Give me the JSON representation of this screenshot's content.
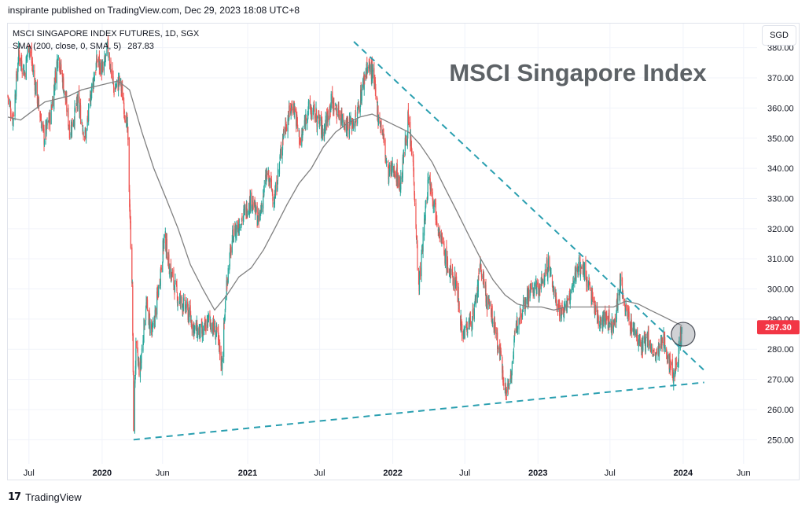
{
  "header": {
    "published_line": "inspirante published on TradingView.com, Dec 29, 2023 18:08 UTC+8"
  },
  "legend": {
    "instrument": "MSCI SINGAPORE INDEX FUTURES, 1D, SGX",
    "indicator": "SMA (200, close, 0, SMA, 5)",
    "indicator_value": "287.83"
  },
  "currency_button": "SGD",
  "footer": {
    "brand": "TradingView"
  },
  "colors": {
    "up": "#26a69a",
    "down": "#ef5350",
    "sma": "#808080",
    "trendline": "#2a9fb0",
    "price_badge": "#f23645",
    "axis_text": "#131722",
    "grid": "#f0f3fa"
  },
  "chart_data": {
    "type": "candlestick",
    "title": "MSCI Singapore Index",
    "ylim": [
      242,
      388
    ],
    "y_ticks": [
      250,
      260,
      270,
      280,
      290,
      300,
      310,
      320,
      330,
      340,
      350,
      360,
      370,
      380
    ],
    "y_tick_labels": [
      "250.00",
      "260.00",
      "270.00",
      "280.00",
      "290.00",
      "300.00",
      "310.00",
      "320.00",
      "330.00",
      "340.00",
      "350.00",
      "360.00",
      "370.00",
      "380.00"
    ],
    "x_range": [
      "2019-05-09",
      "2024-07-05"
    ],
    "x_ticks": [
      {
        "label": "Jul",
        "date": "2019-07-01"
      },
      {
        "label": "2020",
        "date": "2020-01-01"
      },
      {
        "label": "Jun",
        "date": "2020-06-01"
      },
      {
        "label": "2021",
        "date": "2021-01-01"
      },
      {
        "label": "Jul",
        "date": "2021-07-01"
      },
      {
        "label": "2022",
        "date": "2022-01-01"
      },
      {
        "label": "Jul",
        "date": "2022-07-01"
      },
      {
        "label": "2023",
        "date": "2023-01-01"
      },
      {
        "label": "Jul",
        "date": "2023-07-01"
      },
      {
        "label": "2024",
        "date": "2024-01-01"
      },
      {
        "label": "Jun",
        "date": "2024-06-01"
      }
    ],
    "last_price": 287.3,
    "last_price_label": "287.30",
    "last_date": "2023-12-29",
    "price_path": [
      [
        "2019-05-09",
        364
      ],
      [
        "2019-05-22",
        356
      ],
      [
        "2019-06-05",
        378
      ],
      [
        "2019-06-20",
        372
      ],
      [
        "2019-07-01",
        381
      ],
      [
        "2019-07-20",
        365
      ],
      [
        "2019-08-08",
        350
      ],
      [
        "2019-08-25",
        358
      ],
      [
        "2019-09-12",
        378
      ],
      [
        "2019-09-28",
        366
      ],
      [
        "2019-10-12",
        352
      ],
      [
        "2019-11-01",
        362
      ],
      [
        "2019-11-20",
        350
      ],
      [
        "2019-12-05",
        366
      ],
      [
        "2019-12-20",
        376
      ],
      [
        "2020-01-03",
        372
      ],
      [
        "2020-01-15",
        380
      ],
      [
        "2020-01-31",
        366
      ],
      [
        "2020-02-15",
        369
      ],
      [
        "2020-02-25",
        361
      ],
      [
        "2020-03-05",
        352
      ],
      [
        "2020-03-12",
        320
      ],
      [
        "2020-03-17",
        300
      ],
      [
        "2020-03-20",
        255
      ],
      [
        "2020-03-26",
        280
      ],
      [
        "2020-04-05",
        272
      ],
      [
        "2020-04-20",
        295
      ],
      [
        "2020-05-06",
        285
      ],
      [
        "2020-05-22",
        300
      ],
      [
        "2020-06-06",
        318
      ],
      [
        "2020-06-20",
        306
      ],
      [
        "2020-07-10",
        297
      ],
      [
        "2020-08-01",
        293
      ],
      [
        "2020-08-20",
        287
      ],
      [
        "2020-09-10",
        285
      ],
      [
        "2020-09-25",
        290
      ],
      [
        "2020-10-15",
        285
      ],
      [
        "2020-10-28",
        275
      ],
      [
        "2020-11-09",
        302
      ],
      [
        "2020-11-25",
        318
      ],
      [
        "2020-12-20",
        324
      ],
      [
        "2021-01-10",
        330
      ],
      [
        "2021-01-29",
        322
      ],
      [
        "2021-02-18",
        338
      ],
      [
        "2021-03-10",
        330
      ],
      [
        "2021-04-01",
        352
      ],
      [
        "2021-04-25",
        362
      ],
      [
        "2021-05-14",
        348
      ],
      [
        "2021-06-01",
        360
      ],
      [
        "2021-06-20",
        358
      ],
      [
        "2021-07-10",
        352
      ],
      [
        "2021-07-30",
        362
      ],
      [
        "2021-08-20",
        358
      ],
      [
        "2021-09-10",
        354
      ],
      [
        "2021-09-30",
        356
      ],
      [
        "2021-10-15",
        366
      ],
      [
        "2021-10-28",
        374
      ],
      [
        "2021-11-10",
        372
      ],
      [
        "2021-11-25",
        358
      ],
      [
        "2021-12-06",
        352
      ],
      [
        "2021-12-20",
        338
      ],
      [
        "2022-01-05",
        340
      ],
      [
        "2022-01-20",
        334
      ],
      [
        "2022-02-08",
        356
      ],
      [
        "2022-02-22",
        340
      ],
      [
        "2022-03-07",
        300
      ],
      [
        "2022-03-15",
        312
      ],
      [
        "2022-04-01",
        338
      ],
      [
        "2022-04-20",
        325
      ],
      [
        "2022-05-10",
        312
      ],
      [
        "2022-05-25",
        305
      ],
      [
        "2022-06-10",
        302
      ],
      [
        "2022-06-25",
        285
      ],
      [
        "2022-07-10",
        288
      ],
      [
        "2022-07-25",
        292
      ],
      [
        "2022-08-10",
        308
      ],
      [
        "2022-08-25",
        296
      ],
      [
        "2022-09-10",
        290
      ],
      [
        "2022-09-28",
        278
      ],
      [
        "2022-10-13",
        265
      ],
      [
        "2022-10-25",
        272
      ],
      [
        "2022-11-10",
        290
      ],
      [
        "2022-11-28",
        296
      ],
      [
        "2022-12-15",
        300
      ],
      [
        "2023-01-05",
        300
      ],
      [
        "2023-01-27",
        308
      ],
      [
        "2023-02-14",
        297
      ],
      [
        "2023-03-01",
        292
      ],
      [
        "2023-03-20",
        296
      ],
      [
        "2023-04-12",
        308
      ],
      [
        "2023-04-28",
        306
      ],
      [
        "2023-05-15",
        298
      ],
      [
        "2023-06-01",
        290
      ],
      [
        "2023-06-20",
        290
      ],
      [
        "2023-07-10",
        288
      ],
      [
        "2023-07-28",
        302
      ],
      [
        "2023-08-10",
        293
      ],
      [
        "2023-08-22",
        288
      ],
      [
        "2023-09-05",
        285
      ],
      [
        "2023-09-20",
        280
      ],
      [
        "2023-10-05",
        284
      ],
      [
        "2023-10-20",
        277
      ],
      [
        "2023-11-03",
        280
      ],
      [
        "2023-11-15",
        283
      ],
      [
        "2023-11-28",
        275
      ],
      [
        "2023-12-08",
        272
      ],
      [
        "2023-12-18",
        277
      ],
      [
        "2023-12-29",
        287.3
      ]
    ],
    "sma_path": [
      [
        "2019-05-09",
        357
      ],
      [
        "2019-06-10",
        356
      ],
      [
        "2019-07-10",
        359
      ],
      [
        "2019-08-10",
        362
      ],
      [
        "2019-09-10",
        363
      ],
      [
        "2019-10-10",
        364
      ],
      [
        "2019-11-10",
        366
      ],
      [
        "2019-12-10",
        367
      ],
      [
        "2020-01-10",
        368
      ],
      [
        "2020-02-10",
        369
      ],
      [
        "2020-03-10",
        366
      ],
      [
        "2020-04-10",
        352
      ],
      [
        "2020-05-10",
        340
      ],
      [
        "2020-06-10",
        330
      ],
      [
        "2020-07-10",
        320
      ],
      [
        "2020-08-10",
        308
      ],
      [
        "2020-09-10",
        300
      ],
      [
        "2020-10-10",
        293
      ],
      [
        "2020-11-10",
        298
      ],
      [
        "2020-12-10",
        304
      ],
      [
        "2021-01-10",
        307
      ],
      [
        "2021-02-10",
        313
      ],
      [
        "2021-03-10",
        320
      ],
      [
        "2021-04-10",
        328
      ],
      [
        "2021-05-10",
        335
      ],
      [
        "2021-06-10",
        340
      ],
      [
        "2021-07-10",
        347
      ],
      [
        "2021-08-10",
        352
      ],
      [
        "2021-09-10",
        355
      ],
      [
        "2021-10-10",
        357
      ],
      [
        "2021-11-10",
        358
      ],
      [
        "2021-12-10",
        356
      ],
      [
        "2022-01-10",
        354
      ],
      [
        "2022-02-10",
        352
      ],
      [
        "2022-03-10",
        348
      ],
      [
        "2022-04-10",
        342
      ],
      [
        "2022-05-10",
        334
      ],
      [
        "2022-06-10",
        326
      ],
      [
        "2022-07-10",
        318
      ],
      [
        "2022-08-10",
        310
      ],
      [
        "2022-09-10",
        303
      ],
      [
        "2022-10-10",
        298
      ],
      [
        "2022-11-10",
        295
      ],
      [
        "2022-12-10",
        294
      ],
      [
        "2023-01-10",
        294
      ],
      [
        "2023-02-10",
        293
      ],
      [
        "2023-03-10",
        294
      ],
      [
        "2023-04-10",
        294
      ],
      [
        "2023-05-10",
        294
      ],
      [
        "2023-06-10",
        294
      ],
      [
        "2023-07-10",
        294
      ],
      [
        "2023-08-10",
        296
      ],
      [
        "2023-09-10",
        295
      ],
      [
        "2023-10-10",
        293
      ],
      [
        "2023-11-10",
        291
      ],
      [
        "2023-12-10",
        289
      ],
      [
        "2023-12-29",
        287.83
      ]
    ],
    "trendlines": [
      {
        "name": "descending resistance",
        "from": [
          "2021-09-25",
          382
        ],
        "to": [
          "2024-02-23",
          273
        ]
      },
      {
        "name": "rising support",
        "from": [
          "2020-03-20",
          250
        ],
        "to": [
          "2024-02-23",
          269
        ]
      }
    ],
    "highlight_circle": {
      "date": "2024-01-01",
      "value": 285
    },
    "grid": true
  }
}
